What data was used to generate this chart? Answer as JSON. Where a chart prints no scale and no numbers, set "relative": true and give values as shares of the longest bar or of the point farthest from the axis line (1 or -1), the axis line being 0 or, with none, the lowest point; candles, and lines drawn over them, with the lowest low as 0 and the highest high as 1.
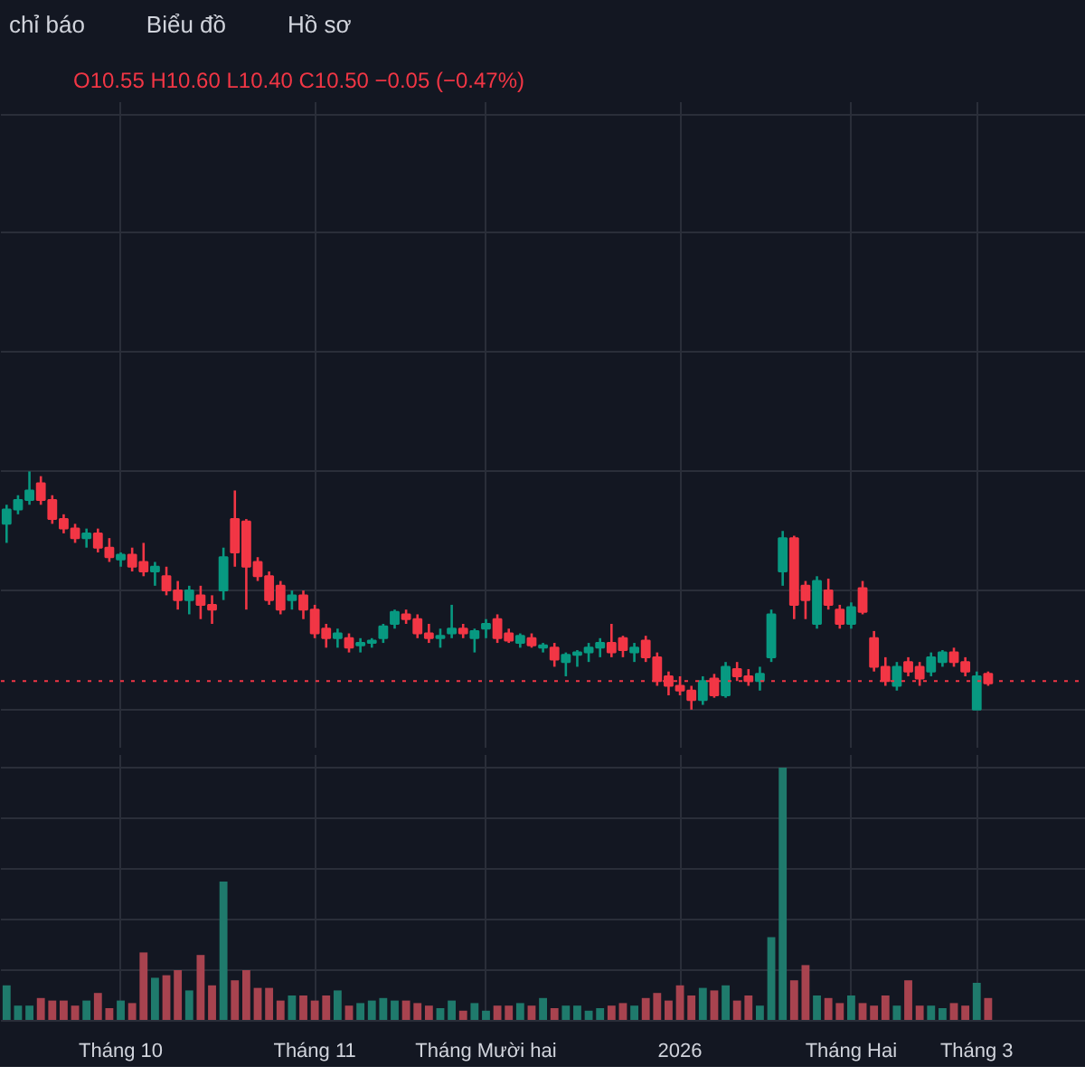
{
  "chart_data": [
    {
      "type": "candlestick",
      "relative": true,
      "tick_labels": false,
      "grid": true,
      "title": "O10.55 H10.60 L10.40 C10.50 −0.05 (−0.47%)",
      "annotations": [
        "chỉ báo",
        "Biểu đồ",
        "Hồ sơ"
      ],
      "categories": [
        null,
        null,
        null,
        null,
        null,
        null,
        null,
        null,
        null,
        null,
        null,
        null,
        null,
        null,
        null,
        null,
        null,
        null,
        null,
        null,
        null,
        null,
        null,
        null,
        null,
        null,
        null,
        null,
        null,
        null,
        null,
        null,
        null,
        null,
        null,
        null,
        null,
        null,
        null,
        null,
        null,
        null,
        null,
        null,
        null,
        null,
        null,
        null,
        null,
        null,
        null,
        null,
        null,
        null,
        null,
        null,
        null,
        null,
        null,
        null,
        null,
        null,
        null,
        null,
        null,
        null,
        null,
        null,
        null,
        null,
        null,
        null,
        null,
        null,
        null,
        null,
        null,
        null,
        null,
        null,
        null,
        null,
        null,
        null,
        null,
        null,
        null
      ],
      "ref_lines": [
        {
          "axis": "y",
          "value": 0.12,
          "color": "#f23645",
          "line_style": "dotted"
        }
      ],
      "ohlc": [
        [
          0.78,
          0.86,
          0.7,
          0.84
        ],
        [
          0.84,
          0.9,
          0.82,
          0.88
        ],
        [
          0.88,
          1.0,
          0.86,
          0.92
        ],
        [
          0.95,
          0.98,
          0.86,
          0.88
        ],
        [
          0.88,
          0.9,
          0.78,
          0.8
        ],
        [
          0.8,
          0.82,
          0.74,
          0.76
        ],
        [
          0.76,
          0.78,
          0.7,
          0.72
        ],
        [
          0.72,
          0.76,
          0.68,
          0.74
        ],
        [
          0.74,
          0.76,
          0.66,
          0.68
        ],
        [
          0.68,
          0.72,
          0.62,
          0.64
        ],
        [
          0.63,
          0.66,
          0.6,
          0.65
        ],
        [
          0.65,
          0.68,
          0.58,
          0.6
        ],
        [
          0.62,
          0.7,
          0.56,
          0.58
        ],
        [
          0.58,
          0.62,
          0.52,
          0.6
        ],
        [
          0.56,
          0.6,
          0.48,
          0.5
        ],
        [
          0.5,
          0.54,
          0.42,
          0.46
        ],
        [
          0.46,
          0.52,
          0.4,
          0.5
        ],
        [
          0.48,
          0.52,
          0.38,
          0.44
        ],
        [
          0.44,
          0.48,
          0.36,
          0.42
        ],
        [
          0.5,
          0.68,
          0.46,
          0.64
        ],
        [
          0.8,
          0.92,
          0.6,
          0.66
        ],
        [
          0.79,
          0.8,
          0.42,
          0.6
        ],
        [
          0.62,
          0.64,
          0.54,
          0.56
        ],
        [
          0.56,
          0.58,
          0.44,
          0.46
        ],
        [
          0.52,
          0.54,
          0.4,
          0.42
        ],
        [
          0.46,
          0.5,
          0.42,
          0.48
        ],
        [
          0.48,
          0.5,
          0.38,
          0.42
        ],
        [
          0.42,
          0.44,
          0.3,
          0.32
        ],
        [
          0.34,
          0.36,
          0.26,
          0.3
        ],
        [
          0.3,
          0.34,
          0.26,
          0.32
        ],
        [
          0.3,
          0.32,
          0.24,
          0.26
        ],
        [
          0.27,
          0.3,
          0.24,
          0.28
        ],
        [
          0.28,
          0.3,
          0.26,
          0.29
        ],
        [
          0.3,
          0.36,
          0.28,
          0.35
        ],
        [
          0.36,
          0.42,
          0.34,
          0.41
        ],
        [
          0.4,
          0.42,
          0.36,
          0.38
        ],
        [
          0.38,
          0.4,
          0.3,
          0.32
        ],
        [
          0.32,
          0.36,
          0.28,
          0.3
        ],
        [
          0.3,
          0.34,
          0.26,
          0.31
        ],
        [
          0.32,
          0.44,
          0.3,
          0.34
        ],
        [
          0.34,
          0.36,
          0.3,
          0.32
        ],
        [
          0.3,
          0.34,
          0.24,
          0.33
        ],
        [
          0.34,
          0.38,
          0.3,
          0.36
        ],
        [
          0.38,
          0.4,
          0.28,
          0.3
        ],
        [
          0.32,
          0.34,
          0.28,
          0.29
        ],
        [
          0.28,
          0.32,
          0.26,
          0.31
        ],
        [
          0.3,
          0.32,
          0.26,
          0.27
        ],
        [
          0.26,
          0.28,
          0.24,
          0.27
        ],
        [
          0.26,
          0.28,
          0.18,
          0.21
        ],
        [
          0.2,
          0.24,
          0.14,
          0.23
        ],
        [
          0.23,
          0.25,
          0.18,
          0.24
        ],
        [
          0.24,
          0.28,
          0.2,
          0.26
        ],
        [
          0.26,
          0.3,
          0.22,
          0.28
        ],
        [
          0.28,
          0.36,
          0.22,
          0.24
        ],
        [
          0.3,
          0.31,
          0.22,
          0.25
        ],
        [
          0.24,
          0.28,
          0.2,
          0.26
        ],
        [
          0.29,
          0.31,
          0.2,
          0.22
        ],
        [
          0.22,
          0.24,
          0.1,
          0.12
        ],
        [
          0.14,
          0.16,
          0.06,
          0.1
        ],
        [
          0.1,
          0.14,
          0.06,
          0.08
        ],
        [
          0.08,
          0.1,
          0.0,
          0.04
        ],
        [
          0.04,
          0.14,
          0.02,
          0.12
        ],
        [
          0.13,
          0.15,
          0.05,
          0.06
        ],
        [
          0.06,
          0.2,
          0.05,
          0.18
        ],
        [
          0.17,
          0.2,
          0.12,
          0.14
        ],
        [
          0.14,
          0.17,
          0.1,
          0.12
        ],
        [
          0.12,
          0.18,
          0.08,
          0.15
        ],
        [
          0.22,
          0.42,
          0.2,
          0.4
        ],
        [
          0.58,
          0.75,
          0.52,
          0.72
        ],
        [
          0.72,
          0.73,
          0.38,
          0.44
        ],
        [
          0.52,
          0.54,
          0.38,
          0.46
        ],
        [
          0.36,
          0.56,
          0.34,
          0.54
        ],
        [
          0.5,
          0.55,
          0.42,
          0.44
        ],
        [
          0.42,
          0.44,
          0.34,
          0.36
        ],
        [
          0.36,
          0.45,
          0.34,
          0.43
        ],
        [
          0.51,
          0.54,
          0.4,
          0.41
        ],
        [
          0.3,
          0.33,
          0.16,
          0.18
        ],
        [
          0.18,
          0.22,
          0.1,
          0.12
        ],
        [
          0.1,
          0.2,
          0.08,
          0.18
        ],
        [
          0.2,
          0.22,
          0.14,
          0.16
        ],
        [
          0.18,
          0.2,
          0.1,
          0.13
        ],
        [
          0.16,
          0.24,
          0.14,
          0.22
        ],
        [
          0.2,
          0.25,
          0.18,
          0.24
        ],
        [
          0.24,
          0.26,
          0.18,
          0.2
        ],
        [
          0.2,
          0.22,
          0.14,
          0.16
        ],
        [
          0.0,
          0.16,
          0.0,
          0.14
        ],
        [
          0.15,
          0.16,
          0.1,
          0.11
        ]
      ],
      "colors": [
        "#089981",
        "#089981",
        "#089981",
        "#f23645",
        "#f23645",
        "#f23645",
        "#f23645",
        "#089981",
        "#f23645",
        "#f23645",
        "#089981",
        "#f23645",
        "#f23645",
        "#089981",
        "#f23645",
        "#f23645",
        "#089981",
        "#f23645",
        "#f23645",
        "#089981",
        "#f23645",
        "#f23645",
        "#f23645",
        "#f23645",
        "#f23645",
        "#089981",
        "#f23645",
        "#f23645",
        "#f23645",
        "#089981",
        "#f23645",
        "#089981",
        "#089981",
        "#089981",
        "#089981",
        "#f23645",
        "#f23645",
        "#f23645",
        "#089981",
        "#089981",
        "#f23645",
        "#089981",
        "#089981",
        "#f23645",
        "#f23645",
        "#089981",
        "#f23645",
        "#089981",
        "#f23645",
        "#089981",
        "#089981",
        "#089981",
        "#089981",
        "#f23645",
        "#f23645",
        "#089981",
        "#f23645",
        "#f23645",
        "#f23645",
        "#f23645",
        "#f23645",
        "#089981",
        "#f23645",
        "#089981",
        "#f23645",
        "#f23645",
        "#089981",
        "#089981",
        "#089981",
        "#f23645",
        "#f23645",
        "#089981",
        "#f23645",
        "#f23645",
        "#089981",
        "#f23645",
        "#f23645",
        "#f23645",
        "#089981",
        "#f23645",
        "#f23645",
        "#089981",
        "#089981",
        "#f23645",
        "#f23645",
        "#089981",
        "#f23645"
      ]
    },
    {
      "type": "bar",
      "relative": true,
      "tick_labels": "x",
      "grid": true,
      "categories": [
        null,
        null,
        null,
        null,
        null,
        null,
        null,
        null,
        null,
        null,
        "Tháng 10",
        null,
        null,
        null,
        null,
        null,
        null,
        null,
        null,
        null,
        null,
        null,
        null,
        null,
        null,
        null,
        null,
        "Tháng 11",
        null,
        null,
        null,
        null,
        null,
        null,
        null,
        null,
        null,
        null,
        null,
        null,
        null,
        null,
        "Tháng Mười hai",
        null,
        null,
        null,
        null,
        null,
        null,
        null,
        null,
        null,
        null,
        null,
        null,
        null,
        null,
        null,
        null,
        "2026",
        null,
        null,
        null,
        null,
        null,
        null,
        null,
        null,
        null,
        null,
        null,
        null,
        null,
        null,
        "Tháng Hai",
        null,
        null,
        null,
        null,
        null,
        null,
        null,
        null,
        null,
        null,
        "Tháng 3",
        null
      ],
      "values": [
        0.14,
        0.06,
        0.06,
        0.09,
        0.08,
        0.08,
        0.06,
        0.08,
        0.11,
        0.05,
        0.08,
        0.07,
        0.27,
        0.17,
        0.18,
        0.2,
        0.12,
        0.26,
        0.14,
        0.55,
        0.16,
        0.2,
        0.13,
        0.13,
        0.08,
        0.1,
        0.1,
        0.08,
        0.1,
        0.12,
        0.06,
        0.07,
        0.08,
        0.09,
        0.08,
        0.08,
        0.07,
        0.06,
        0.05,
        0.08,
        0.04,
        0.07,
        0.04,
        0.06,
        0.06,
        0.07,
        0.06,
        0.09,
        0.05,
        0.06,
        0.06,
        0.04,
        0.05,
        0.06,
        0.07,
        0.06,
        0.09,
        0.11,
        0.08,
        0.14,
        0.1,
        0.13,
        0.12,
        0.14,
        0.08,
        0.1,
        0.06,
        0.33,
        1.0,
        0.16,
        0.22,
        0.1,
        0.09,
        0.07,
        0.1,
        0.07,
        0.06,
        0.1,
        0.06,
        0.16,
        0.06,
        0.06,
        0.05,
        0.07,
        0.06,
        0.15,
        0.09
      ],
      "colors": [
        "#1f7a6c",
        "#1f7a6c",
        "#1f7a6c",
        "#a8434f",
        "#a8434f",
        "#a8434f",
        "#a8434f",
        "#1f7a6c",
        "#a8434f",
        "#a8434f",
        "#1f7a6c",
        "#a8434f",
        "#a8434f",
        "#1f7a6c",
        "#a8434f",
        "#a8434f",
        "#1f7a6c",
        "#a8434f",
        "#a8434f",
        "#1f7a6c",
        "#a8434f",
        "#a8434f",
        "#a8434f",
        "#a8434f",
        "#a8434f",
        "#1f7a6c",
        "#a8434f",
        "#a8434f",
        "#a8434f",
        "#1f7a6c",
        "#a8434f",
        "#1f7a6c",
        "#1f7a6c",
        "#1f7a6c",
        "#1f7a6c",
        "#a8434f",
        "#a8434f",
        "#a8434f",
        "#1f7a6c",
        "#1f7a6c",
        "#a8434f",
        "#1f7a6c",
        "#1f7a6c",
        "#a8434f",
        "#a8434f",
        "#1f7a6c",
        "#a8434f",
        "#1f7a6c",
        "#a8434f",
        "#1f7a6c",
        "#1f7a6c",
        "#1f7a6c",
        "#1f7a6c",
        "#a8434f",
        "#a8434f",
        "#1f7a6c",
        "#a8434f",
        "#a8434f",
        "#a8434f",
        "#a8434f",
        "#a8434f",
        "#1f7a6c",
        "#a8434f",
        "#1f7a6c",
        "#a8434f",
        "#a8434f",
        "#1f7a6c",
        "#1f7a6c",
        "#1f7a6c",
        "#a8434f",
        "#a8434f",
        "#1f7a6c",
        "#a8434f",
        "#a8434f",
        "#1f7a6c",
        "#a8434f",
        "#a8434f",
        "#a8434f",
        "#1f7a6c",
        "#a8434f",
        "#a8434f",
        "#1f7a6c",
        "#1f7a6c",
        "#a8434f",
        "#a8434f",
        "#1f7a6c",
        "#a8434f"
      ]
    }
  ]
}
